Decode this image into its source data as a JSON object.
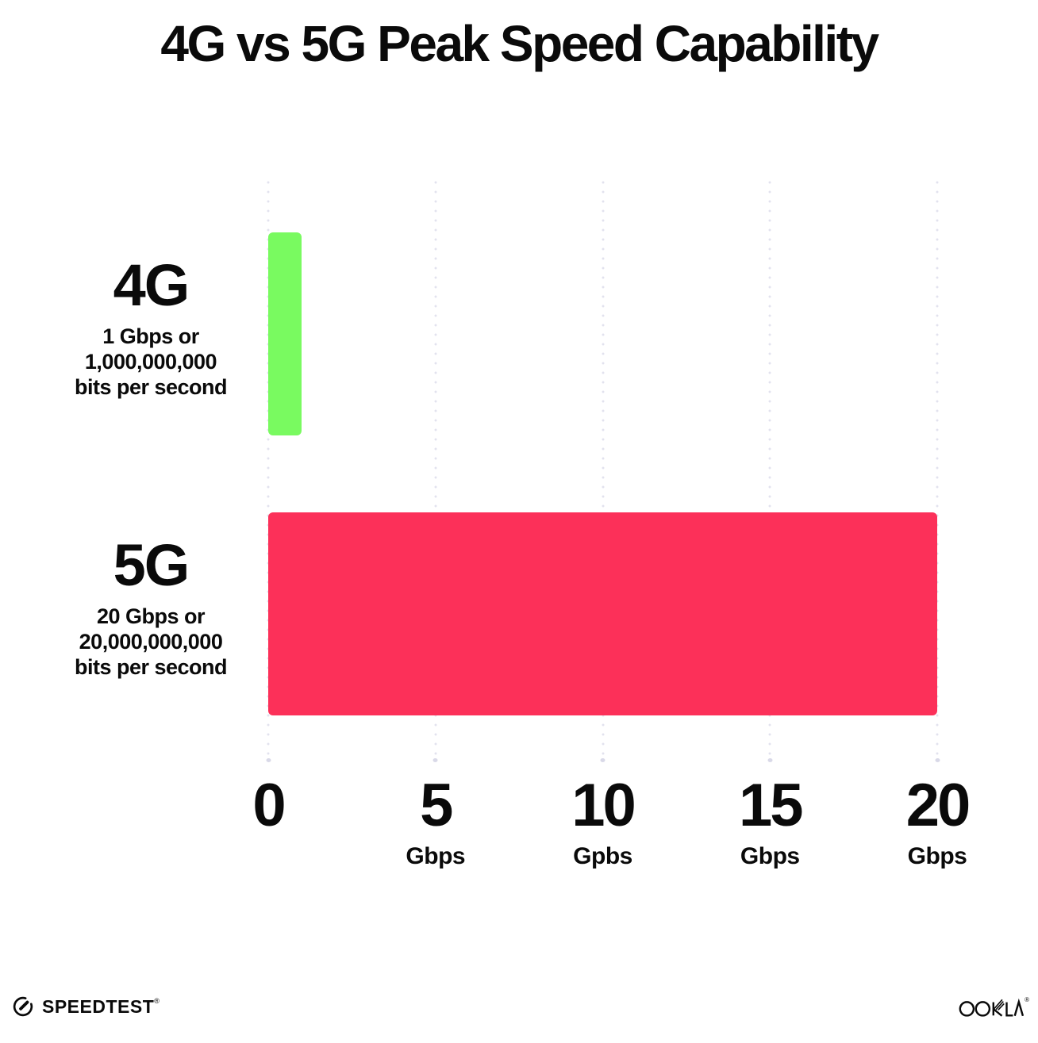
{
  "title": "4G vs 5G Peak Speed Capability",
  "chart_data": {
    "type": "bar",
    "orientation": "horizontal",
    "title": "4G vs 5G Peak Speed Capability",
    "categories": [
      "4G",
      "5G"
    ],
    "values": [
      1,
      20
    ],
    "xlim": [
      0,
      20
    ],
    "grid": "dotted-vertical",
    "bar_colors": [
      "#79fa60",
      "#fc3059"
    ],
    "series_labels": [
      {
        "name": "4G",
        "sub_line1": "1 Gbps or",
        "sub_line2": "1,000,000,000",
        "sub_line3": "bits per second"
      },
      {
        "name": "5G",
        "sub_line1": "20 Gbps or",
        "sub_line2": "20,000,000,000",
        "sub_line3": "bits per second"
      }
    ],
    "x_ticks": [
      {
        "value": "0",
        "unit": ""
      },
      {
        "value": "5",
        "unit": "Gbps"
      },
      {
        "value": "10",
        "unit": "Gpbs"
      },
      {
        "value": "15",
        "unit": "Gbps"
      },
      {
        "value": "20",
        "unit": "Gbps"
      }
    ]
  },
  "footer": {
    "speedtest_label": "SPEEDTEST",
    "speedtest_trademark": "®",
    "ookla_label": "OOKLA",
    "ookla_trademark": "®"
  }
}
